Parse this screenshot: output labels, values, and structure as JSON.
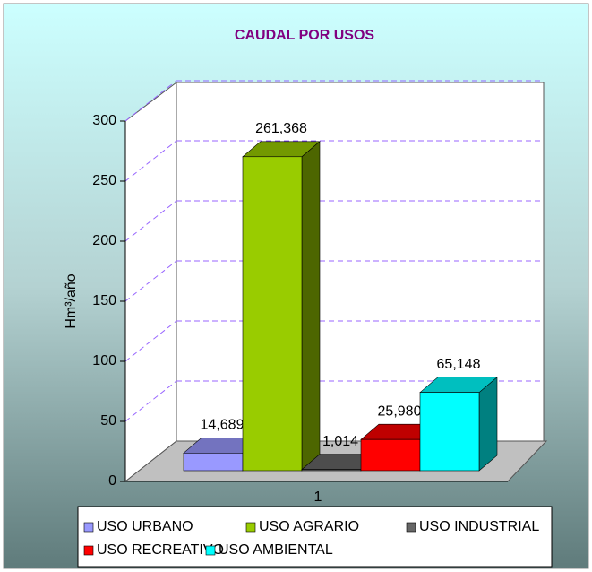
{
  "chart_data": {
    "type": "bar3d",
    "title": "CAUDAL POR USOS",
    "y_label": "Hm³/año",
    "categories": [
      "1"
    ],
    "series": [
      {
        "name": "USO  URBANO",
        "color": "#9999ff",
        "values": [
          14.689
        ],
        "value_labels": [
          "14,689"
        ]
      },
      {
        "name": "USO AGRARIO",
        "color": "#99cc00",
        "values": [
          261.368
        ],
        "value_labels": [
          "261,368"
        ]
      },
      {
        "name": "USO INDUSTRIAL",
        "color": "#666666",
        "values": [
          1.014
        ],
        "value_labels": [
          "1,014"
        ]
      },
      {
        "name": "USO RECREATIVO",
        "color": "#ff0000",
        "values": [
          25.98
        ],
        "value_labels": [
          "25,980"
        ]
      },
      {
        "name": "USO AMBIENTAL",
        "color": "#00ffff",
        "values": [
          65.148
        ],
        "value_labels": [
          "65,148"
        ]
      }
    ],
    "ylim": [
      0,
      300
    ],
    "yticks": [
      0,
      50,
      100,
      150,
      200,
      250,
      300
    ],
    "grid": true
  }
}
